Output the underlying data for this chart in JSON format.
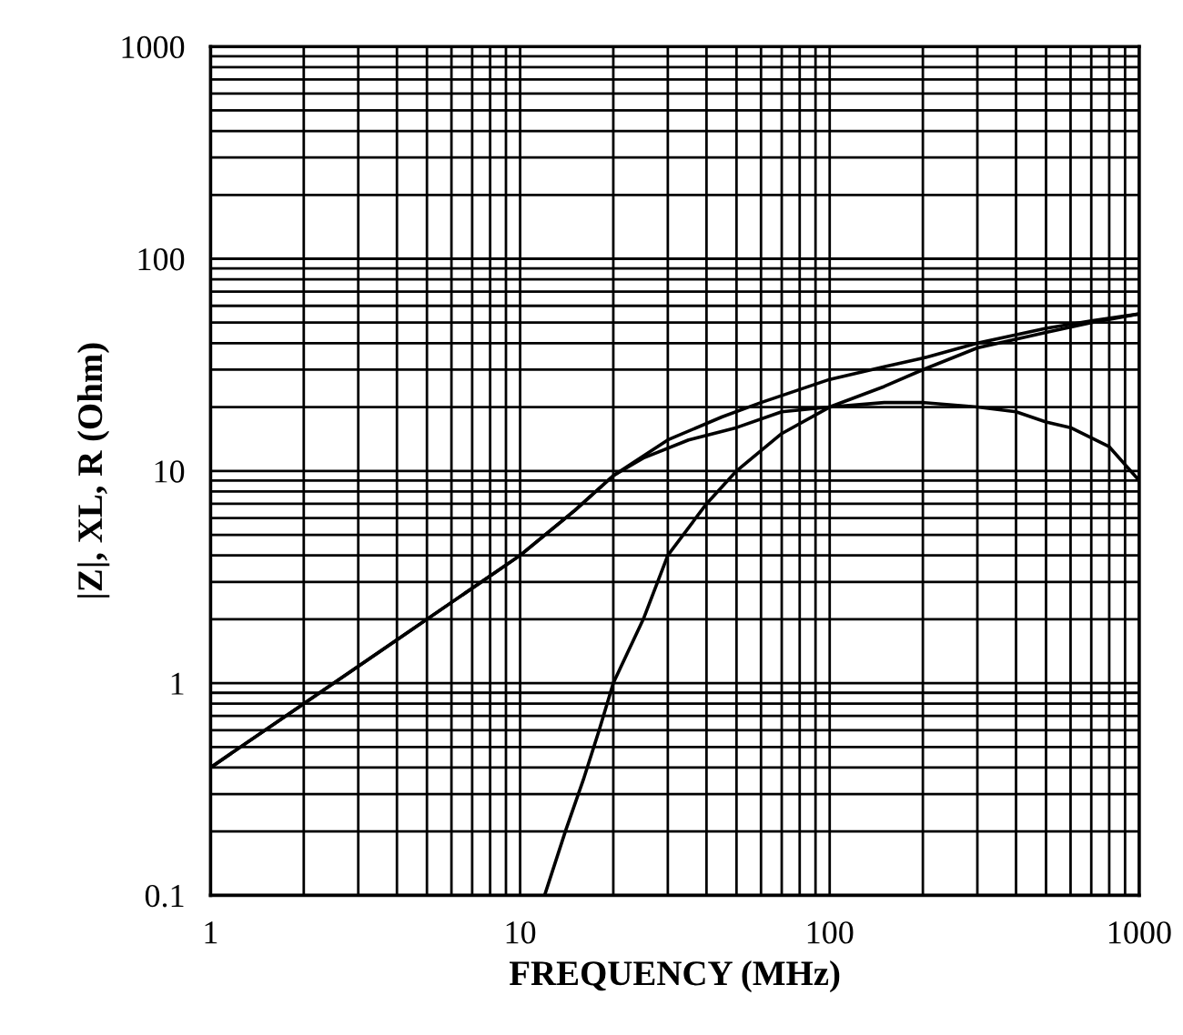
{
  "chart_data": {
    "type": "line",
    "xlabel": "FREQUENCY (MHz)",
    "ylabel": "|Z|, XL, R (Ohm)",
    "log": "xy",
    "grid": true,
    "legend": false,
    "marker": "none",
    "line_style": "solid",
    "xlim": [
      1,
      1000
    ],
    "ylim": [
      0.1,
      1000
    ],
    "xticks": [
      1,
      10,
      100,
      1000
    ],
    "yticks": [
      0.1,
      1,
      10,
      100,
      1000
    ],
    "series": [
      {
        "color": "#000000",
        "x": [
          1,
          2,
          4,
          6,
          8,
          10,
          15,
          20,
          30,
          45,
          60,
          100,
          150,
          200,
          300,
          500,
          700,
          1000
        ],
        "values": [
          0.4,
          0.8,
          1.6,
          2.4,
          3.2,
          4,
          6.5,
          9.5,
          14,
          18,
          21,
          27,
          31,
          34,
          40,
          47,
          51,
          55
        ]
      },
      {
        "color": "#000000",
        "x": [
          1,
          2,
          4,
          6,
          8,
          10,
          15,
          20,
          25,
          35,
          50,
          70,
          100,
          150,
          200,
          300,
          400,
          500,
          600,
          800,
          1000
        ],
        "values": [
          0.4,
          0.8,
          1.6,
          2.4,
          3.2,
          4,
          6.5,
          9.5,
          11.5,
          14,
          16,
          19,
          20,
          21,
          21,
          20,
          19,
          17,
          16,
          13,
          9
        ]
      },
      {
        "color": "#000000",
        "x": [
          12,
          14,
          16,
          18,
          20,
          25,
          30,
          40,
          50,
          70,
          100,
          150,
          200,
          300,
          500,
          700,
          1000
        ],
        "values": [
          0.1,
          0.2,
          0.35,
          0.6,
          1,
          2,
          4,
          7,
          10,
          15,
          20,
          25,
          30,
          38,
          45,
          50,
          55
        ]
      }
    ]
  }
}
